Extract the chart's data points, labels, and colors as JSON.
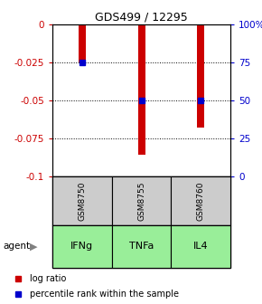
{
  "title": "GDS499 / 12295",
  "samples": [
    "GSM8750",
    "GSM8755",
    "GSM8760"
  ],
  "agents": [
    "IFNg",
    "TNFa",
    "IL4"
  ],
  "log_ratios": [
    -0.025,
    -0.086,
    -0.068
  ],
  "percentile_ranks": [
    75,
    50,
    50
  ],
  "ylim_left": [
    -0.1,
    0
  ],
  "ylim_right": [
    0,
    100
  ],
  "yticks_left": [
    0,
    -0.025,
    -0.05,
    -0.075,
    -0.1
  ],
  "yticks_right": [
    100,
    75,
    50,
    25,
    0
  ],
  "bar_color": "#cc0000",
  "dot_color": "#0000cc",
  "agent_bg_color": "#99ee99",
  "sample_bg_color": "#cccccc",
  "legend_bar_label": "log ratio",
  "legend_dot_label": "percentile rank within the sample",
  "agent_label": "agent",
  "bar_width": 0.12
}
